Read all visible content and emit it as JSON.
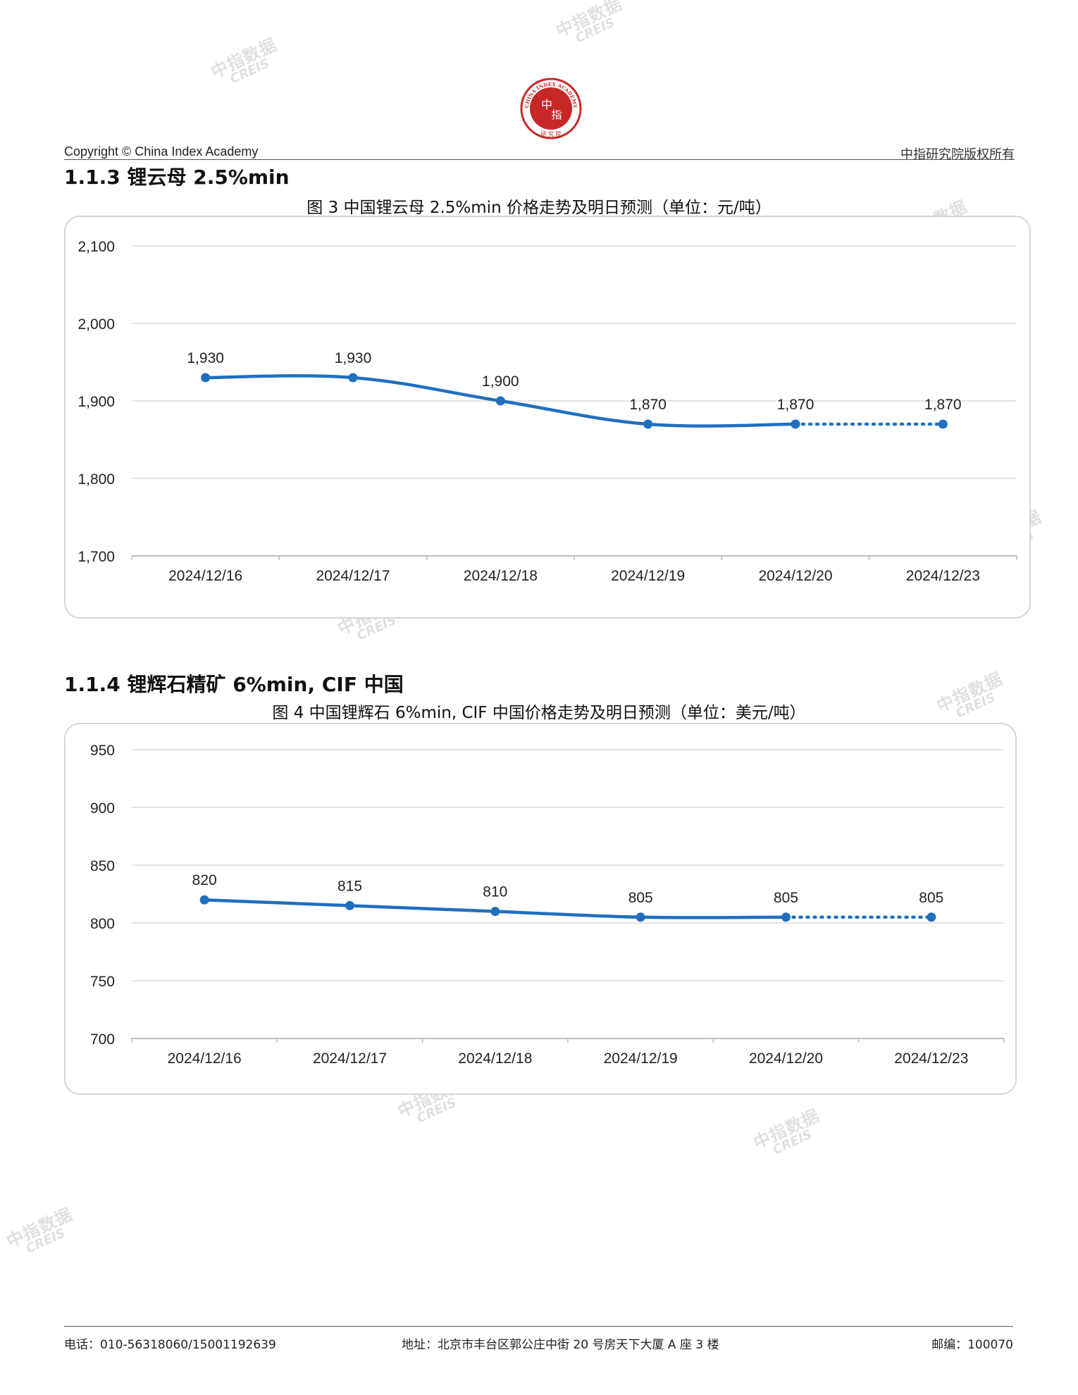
{
  "header": {
    "copyright": "Copyright © China Index Academy",
    "rights": "中指研究院版权所有",
    "logo": {
      "text_top": "CHINA INDEX ACADEMY",
      "text_center_1": "中",
      "text_center_2": "指",
      "text_bottom": "研 究 院",
      "color": "#c62828"
    }
  },
  "watermark": {
    "cn": "中指数据",
    "en": "CREIS"
  },
  "sections": [
    {
      "heading": "1.1.3 锂云母 2.5%min",
      "caption": "图 3 中国锂云母 2.5%min 价格走势及明日预测（单位：元/吨）"
    },
    {
      "heading": "1.1.4 锂辉石精矿 6%min, CIF 中国",
      "caption": "图 4 中国锂辉石 6%min, CIF 中国价格走势及明日预测（单位：美元/吨）"
    }
  ],
  "chart_data": [
    {
      "type": "line",
      "categories": [
        "2024/12/16",
        "2024/12/17",
        "2024/12/18",
        "2024/12/19",
        "2024/12/20",
        "2024/12/23"
      ],
      "values": [
        1930,
        1930,
        1900,
        1870,
        1870,
        1870
      ],
      "value_labels": [
        "1,930",
        "1,930",
        "1,900",
        "1,870",
        "1,870",
        "1,870"
      ],
      "forecast_index": 5,
      "ylim": [
        1700,
        2100
      ],
      "yticks": [
        1700,
        1800,
        1900,
        2000,
        2100
      ],
      "ytick_labels": [
        "1,700",
        "1,800",
        "1,900",
        "2,000",
        "2,100"
      ],
      "grid": true,
      "color": "#1f6fbf"
    },
    {
      "type": "line",
      "categories": [
        "2024/12/16",
        "2024/12/17",
        "2024/12/18",
        "2024/12/19",
        "2024/12/20",
        "2024/12/23"
      ],
      "values": [
        820,
        815,
        810,
        805,
        805,
        805
      ],
      "value_labels": [
        "820",
        "815",
        "810",
        "805",
        "805",
        "805"
      ],
      "forecast_index": 5,
      "ylim": [
        700,
        950
      ],
      "yticks": [
        700,
        750,
        800,
        850,
        900,
        950
      ],
      "ytick_labels": [
        "700",
        "750",
        "800",
        "850",
        "900",
        "950"
      ],
      "grid": true,
      "color": "#1f6fbf"
    }
  ],
  "footer": {
    "phone": "电话：010-56318060/15001192639",
    "address": "地址：北京市丰台区郭公庄中街 20 号房天下大厦 A 座 3 楼",
    "postcode": "邮编：100070"
  }
}
